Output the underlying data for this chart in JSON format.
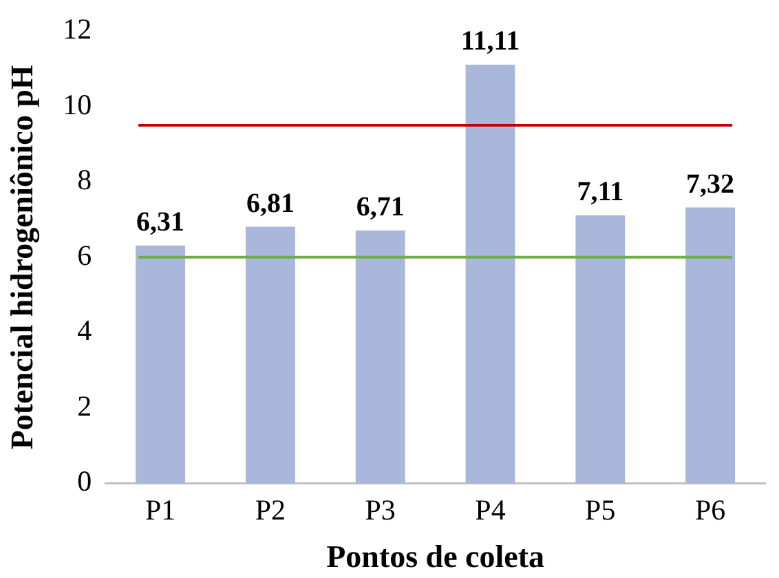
{
  "chart_data": {
    "type": "bar",
    "xlabel": "Pontos de coleta",
    "ylabel": "Potencial hidrogeniônico pH",
    "categories": [
      "P1",
      "P2",
      "P3",
      "P4",
      "P5",
      "P6"
    ],
    "values": [
      6.31,
      6.81,
      6.71,
      11.11,
      7.11,
      7.32
    ],
    "value_labels": [
      "6,31",
      "6,81",
      "6,71",
      "11,11",
      "7,11",
      "7,32"
    ],
    "color": "#a9b8da",
    "ylim": [
      0,
      12
    ],
    "yticks": [
      0,
      2,
      4,
      6,
      8,
      10,
      12
    ],
    "grid": false,
    "legend": false,
    "ref_lines": [
      {
        "axis": "y",
        "value": 9.5,
        "color": "#c00000"
      },
      {
        "axis": "y",
        "value": 6,
        "color": "#70ad47"
      }
    ]
  }
}
